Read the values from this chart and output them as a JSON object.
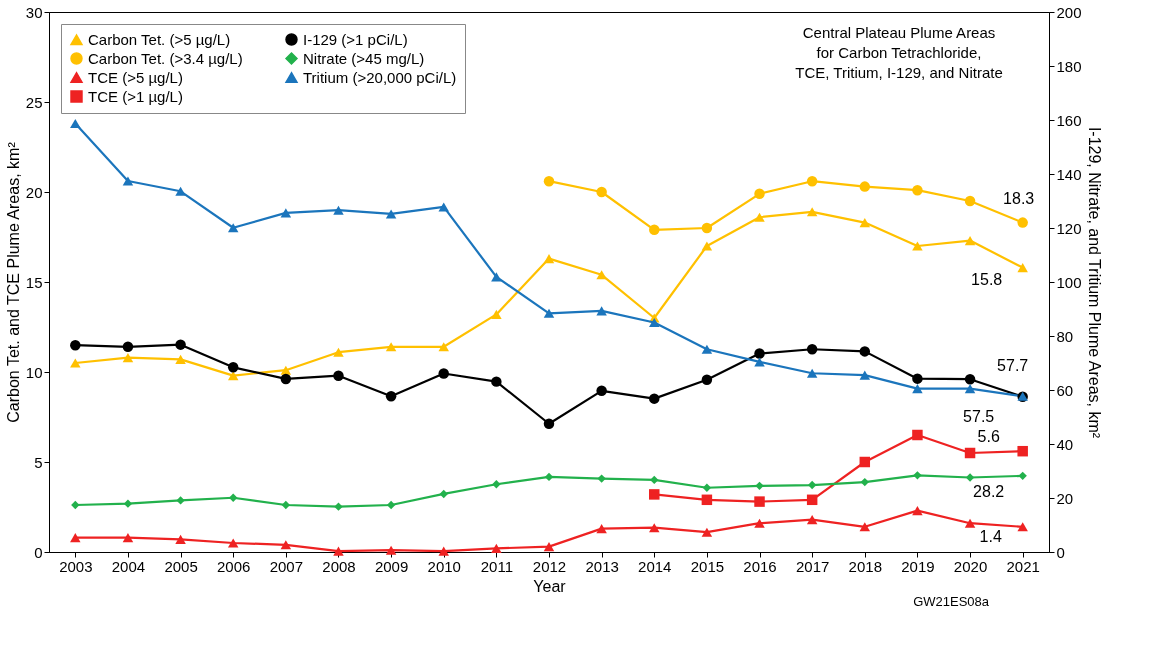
{
  "chart_data": {
    "type": "line",
    "title": "Central Plateau Plume Areas\nfor Carbon Tetrachloride,\nTCE, Tritium, I-129, and Nitrate",
    "xlabel": "Year",
    "ylabel": "Carbon Tet. and TCE Plume Areas, km²",
    "y2label": "I-129, Nitrate, and Tritium Plume Areas, km²",
    "categories": [
      "2003",
      "2004",
      "2005",
      "2006",
      "2007",
      "2008",
      "2009",
      "2010",
      "2011",
      "2012",
      "2013",
      "2014",
      "2015",
      "2016",
      "2017",
      "2018",
      "2019",
      "2020",
      "2021"
    ],
    "ylim": [
      0,
      30
    ],
    "yticks": [
      0,
      5,
      10,
      15,
      20,
      25,
      30
    ],
    "y2lim": [
      0,
      200
    ],
    "y2ticks": [
      0,
      20,
      40,
      60,
      80,
      100,
      120,
      140,
      160,
      180,
      200
    ],
    "grid": false,
    "legend": "top left",
    "line_style": "solid",
    "annotations": [
      "GW21ES08a"
    ],
    "series": [
      {
        "name": "Carbon Tet. (>5 µg/L)",
        "color": "#ffc000",
        "marker": "triangle",
        "values": [
          10.5,
          10.8,
          10.7,
          9.8,
          10.1,
          11.1,
          11.4,
          11.4,
          13.2,
          16.3,
          15.4,
          13.0,
          17.0,
          18.6,
          18.9,
          18.3,
          17.0,
          17.3,
          15.8
        ],
        "value_labels": [
          null,
          null,
          null,
          null,
          null,
          null,
          null,
          null,
          null,
          null,
          null,
          null,
          null,
          null,
          null,
          null,
          null,
          null,
          "15.8"
        ]
      },
      {
        "name": "Carbon Tet. (>3.4 µg/L)",
        "color": "#ffc000",
        "marker": "circle",
        "values": [
          null,
          null,
          null,
          null,
          null,
          null,
          null,
          null,
          null,
          20.6,
          20.0,
          17.9,
          18.0,
          19.9,
          20.6,
          20.3,
          20.1,
          19.5,
          18.3
        ],
        "value_labels": [
          null,
          null,
          null,
          null,
          null,
          null,
          null,
          null,
          null,
          null,
          null,
          null,
          null,
          null,
          null,
          null,
          null,
          null,
          "18.3"
        ]
      },
      {
        "name": "TCE (>5 µg/L)",
        "color": "#ee2222",
        "marker": "triangle",
        "values": [
          0.8,
          0.8,
          0.7,
          0.5,
          0.4,
          0.05,
          0.1,
          0.05,
          0.2,
          0.3,
          1.3,
          1.35,
          1.1,
          1.6,
          1.8,
          1.4,
          2.3,
          1.6,
          1.4
        ],
        "value_labels": [
          null,
          null,
          null,
          null,
          null,
          null,
          null,
          null,
          null,
          null,
          null,
          null,
          null,
          null,
          null,
          null,
          null,
          null,
          "1.4"
        ]
      },
      {
        "name": "TCE (>1 µg/L)",
        "color": "#ee2222",
        "marker": "square",
        "values": [
          null,
          null,
          null,
          null,
          null,
          null,
          null,
          null,
          null,
          null,
          null,
          3.2,
          2.9,
          2.8,
          2.9,
          5.0,
          6.5,
          5.5,
          5.6
        ],
        "value_labels": [
          null,
          null,
          null,
          null,
          null,
          null,
          null,
          null,
          null,
          null,
          null,
          null,
          null,
          null,
          null,
          null,
          null,
          null,
          "5.6"
        ]
      },
      {
        "name": "I-129 (>1 pCi/L)",
        "color": "#000000",
        "marker": "circle",
        "axis": "y2",
        "values": [
          76.6,
          76.0,
          76.8,
          68.4,
          64.1,
          65.3,
          57.7,
          66.1,
          63.1,
          47.5,
          59.7,
          56.8,
          63.8,
          73.5,
          75.1,
          74.3,
          64.2,
          64.0,
          57.5
        ],
        "value_labels": [
          null,
          null,
          null,
          null,
          null,
          null,
          null,
          null,
          null,
          null,
          null,
          null,
          null,
          null,
          null,
          null,
          null,
          null,
          "57.5"
        ]
      },
      {
        "name": "Nitrate (>45 mg/L)",
        "color": "#22b14c",
        "marker": "diamond",
        "axis": "y2",
        "values": [
          17.4,
          17.9,
          19.1,
          20.1,
          17.4,
          16.8,
          17.4,
          21.5,
          25.1,
          27.8,
          27.2,
          26.7,
          23.8,
          24.5,
          24.8,
          25.9,
          28.4,
          27.6,
          28.2
        ],
        "value_labels": [
          null,
          null,
          null,
          null,
          null,
          null,
          null,
          null,
          null,
          null,
          null,
          null,
          null,
          null,
          null,
          null,
          null,
          null,
          "28.2"
        ]
      },
      {
        "name": "Tritium (>20,000 pCi/L)",
        "color": "#1b75bc",
        "marker": "triangle",
        "axis": "y2",
        "values": [
          158.7,
          137.4,
          133.6,
          120.1,
          125.6,
          126.6,
          125.2,
          127.8,
          101.9,
          88.4,
          89.3,
          85.0,
          75.1,
          70.4,
          66.2,
          65.5,
          60.5,
          60.5,
          57.7
        ],
        "value_labels": [
          null,
          null,
          null,
          null,
          null,
          null,
          null,
          null,
          null,
          null,
          null,
          null,
          null,
          null,
          null,
          null,
          null,
          null,
          "57.7"
        ]
      }
    ]
  }
}
